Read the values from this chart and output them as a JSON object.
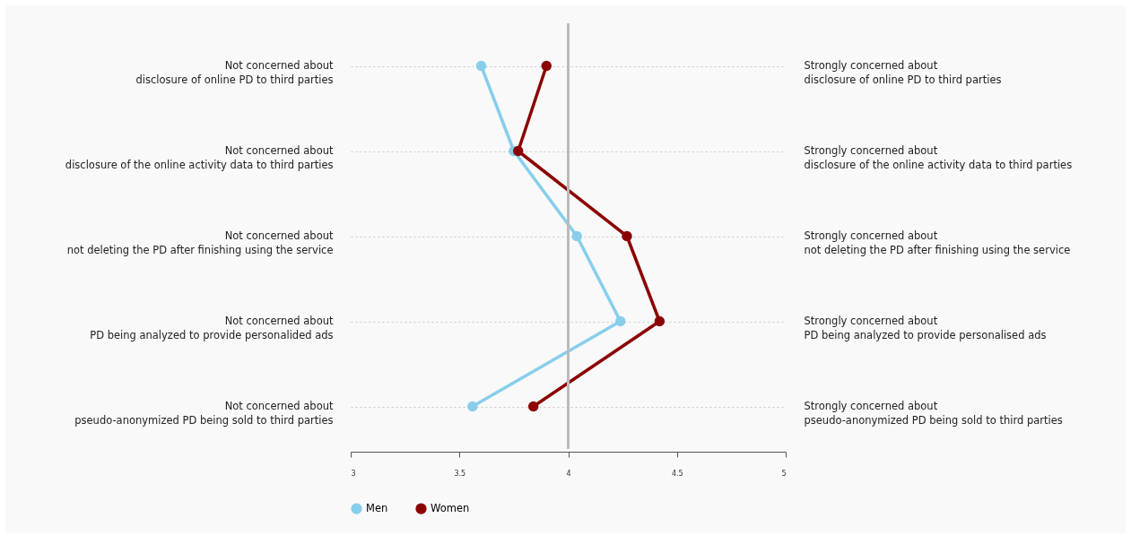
{
  "chart_data": {
    "type": "line",
    "orientation": "horizontal",
    "categories": [
      "Not concerned about\ndisclosure of online PD to third parties",
      "Not concerned about\ndisclosure of the online activity data to third parties",
      "Not concerned about\nnot deleting the PD after finishing using the service",
      "Not concerned about\nPD being analyzed to provide personalided ads",
      "Not concerned about\npseudo-anonymized PD being sold to third parties"
    ],
    "y2_categories": [
      "Strongly concerned about\ndisclosure of online PD to third parties",
      "Strongly concerned about\n disclosure of the online activity data to third parties",
      "Strongly concerned about\nnot deleting the PD after finishing using the service",
      "Strongly concerned about\nPD being analyzed to provide personalised ads",
      "Strongly concerned about\npseudo-anonymized PD being sold to third parties"
    ],
    "series": [
      {
        "name": "Men",
        "color": "#87ceeb",
        "values": [
          3.6,
          3.75,
          4.04,
          4.24,
          3.56
        ]
      },
      {
        "name": "Women",
        "color": "#8b0000",
        "values": [
          3.9,
          3.77,
          4.27,
          4.42,
          3.84
        ]
      }
    ],
    "xlim": [
      3,
      5
    ],
    "xticks": [
      3,
      3.5,
      4,
      4.5,
      5
    ],
    "ref_lines": [
      {
        "axis": "x",
        "value": 4,
        "color": "#bbbbbb"
      }
    ],
    "grid": "y",
    "legend": "bottom",
    "marker": "circle",
    "line_style": "solid"
  }
}
